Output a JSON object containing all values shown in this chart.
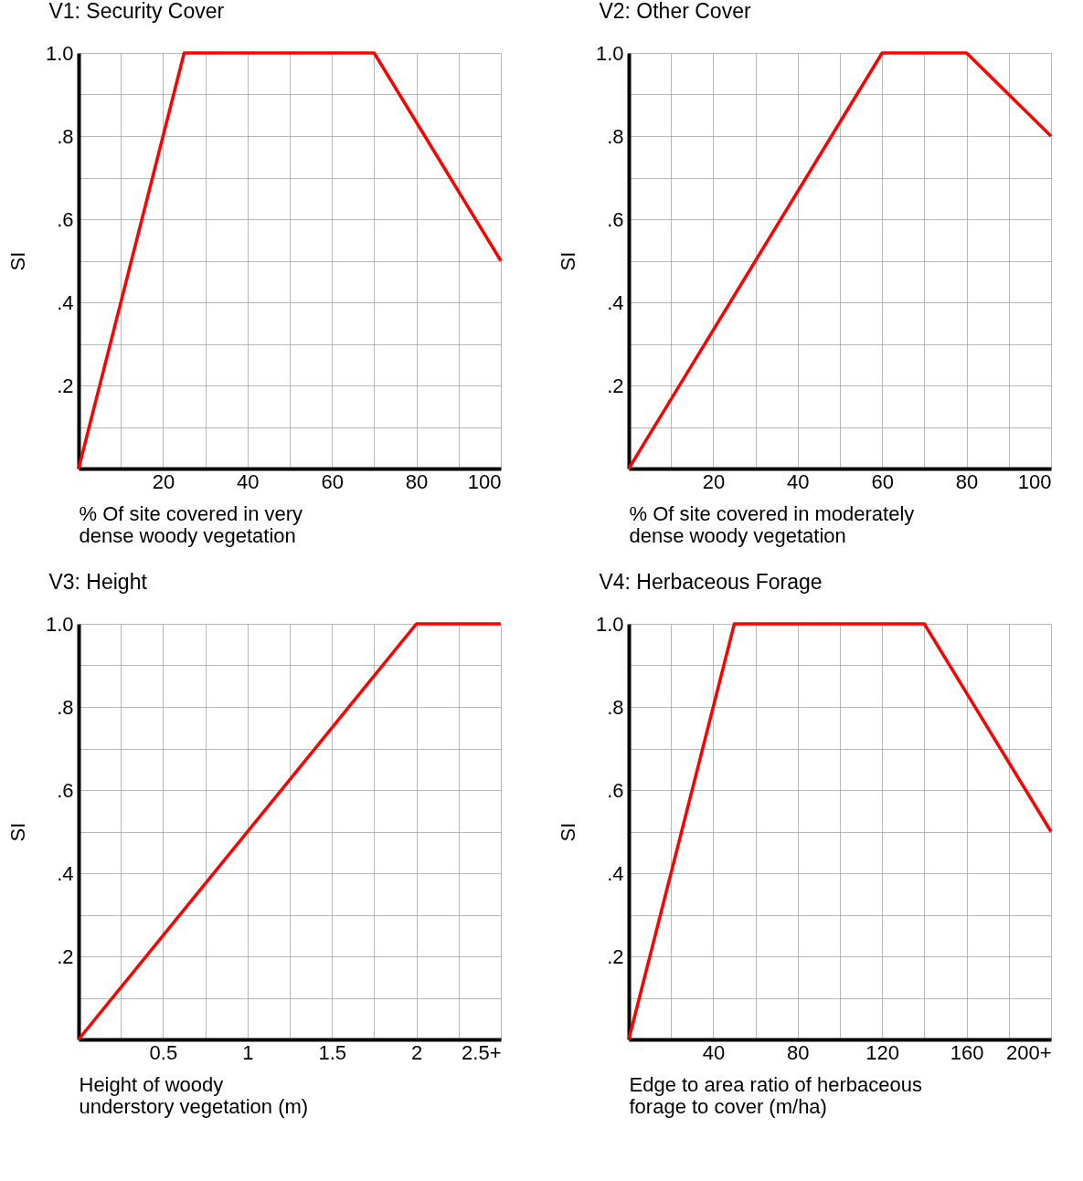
{
  "chart_data": [
    {
      "type": "line",
      "title": "V1: Security Cover",
      "xlabel": "% Of site covered in very dense woody vegetation",
      "ylabel": "SI",
      "x": [
        0,
        25,
        70,
        100
      ],
      "series": [
        {
          "color": "#ff0000",
          "values": [
            0,
            1,
            1,
            0.5
          ]
        }
      ],
      "xlim": [
        0,
        100
      ],
      "ylim": [
        0,
        1
      ],
      "xticks": [
        {
          "value": 10,
          "label": null
        },
        20,
        {
          "value": 30,
          "label": null
        },
        40,
        {
          "value": 50,
          "label": null
        },
        60,
        {
          "value": 70,
          "label": null
        },
        80,
        {
          "value": 90,
          "label": null
        },
        100
      ],
      "yticks": [
        {
          "value": 0.1,
          "label": null
        },
        {
          "value": 0.2,
          "label": ".2"
        },
        {
          "value": 0.3,
          "label": null
        },
        {
          "value": 0.4,
          "label": ".4"
        },
        {
          "value": 0.5,
          "label": null
        },
        {
          "value": 0.6,
          "label": ".6"
        },
        {
          "value": 0.7,
          "label": null
        },
        {
          "value": 0.8,
          "label": ".8"
        },
        {
          "value": 0.9,
          "label": null
        },
        {
          "value": 1,
          "label": "1.0"
        }
      ],
      "grid": true
    },
    {
      "type": "line",
      "title": "V2: Other Cover",
      "xlabel": "% Of site covered in moderately dense woody vegetation",
      "ylabel": "SI",
      "x": [
        0,
        60,
        80,
        100
      ],
      "series": [
        {
          "color": "#ff0000",
          "values": [
            0,
            1,
            1,
            0.8
          ]
        }
      ],
      "xlim": [
        0,
        100
      ],
      "ylim": [
        0,
        1
      ],
      "xticks": [
        {
          "value": 10,
          "label": null
        },
        20,
        {
          "value": 30,
          "label": null
        },
        40,
        {
          "value": 50,
          "label": null
        },
        60,
        {
          "value": 70,
          "label": null
        },
        80,
        {
          "value": 90,
          "label": null
        },
        100
      ],
      "yticks": [
        {
          "value": 0.1,
          "label": null
        },
        {
          "value": 0.2,
          "label": ".2"
        },
        {
          "value": 0.3,
          "label": null
        },
        {
          "value": 0.4,
          "label": ".4"
        },
        {
          "value": 0.5,
          "label": null
        },
        {
          "value": 0.6,
          "label": ".6"
        },
        {
          "value": 0.7,
          "label": null
        },
        {
          "value": 0.8,
          "label": ".8"
        },
        {
          "value": 0.9,
          "label": null
        },
        {
          "value": 1,
          "label": "1.0"
        }
      ],
      "grid": true
    },
    {
      "type": "line",
      "title": "V3: Height",
      "xlabel": "Height of woody understory vegetation (m)",
      "ylabel": "SI",
      "x": [
        0,
        2,
        2.5
      ],
      "series": [
        {
          "color": "#ff0000",
          "values": [
            0,
            1,
            1
          ]
        }
      ],
      "xlim": [
        0,
        2.5
      ],
      "ylim": [
        0,
        1
      ],
      "xticks": [
        {
          "value": 0.25,
          "label": null
        },
        0.5,
        {
          "value": 0.75,
          "label": null
        },
        1,
        {
          "value": 1.25,
          "label": null
        },
        1.5,
        {
          "value": 1.75,
          "label": null
        },
        2,
        {
          "value": 2.25,
          "label": null
        },
        {
          "value": 2.5,
          "label": "2.5+"
        }
      ],
      "yticks": [
        {
          "value": 0.1,
          "label": null
        },
        {
          "value": 0.2,
          "label": ".2"
        },
        {
          "value": 0.3,
          "label": null
        },
        {
          "value": 0.4,
          "label": ".4"
        },
        {
          "value": 0.5,
          "label": null
        },
        {
          "value": 0.6,
          "label": ".6"
        },
        {
          "value": 0.7,
          "label": null
        },
        {
          "value": 0.8,
          "label": ".8"
        },
        {
          "value": 0.9,
          "label": null
        },
        {
          "value": 1,
          "label": "1.0"
        }
      ],
      "grid": true
    },
    {
      "type": "line",
      "title": "V4: Herbaceous Forage",
      "xlabel": "Edge to area ratio of herbaceous forage to cover (m/ha)",
      "ylabel": "SI",
      "x": [
        0,
        50,
        140,
        200
      ],
      "series": [
        {
          "color": "#ff0000",
          "values": [
            0,
            1,
            1,
            0.5
          ]
        }
      ],
      "xlim": [
        0,
        200
      ],
      "ylim": [
        0,
        1
      ],
      "xticks": [
        {
          "value": 20,
          "label": null
        },
        40,
        {
          "value": 60,
          "label": null
        },
        80,
        {
          "value": 100,
          "label": null
        },
        120,
        {
          "value": 140,
          "label": null
        },
        160,
        {
          "value": 180,
          "label": null
        },
        {
          "value": 200,
          "label": "200+"
        }
      ],
      "yticks": [
        {
          "value": 0.1,
          "label": null
        },
        {
          "value": 0.2,
          "label": ".2"
        },
        {
          "value": 0.3,
          "label": null
        },
        {
          "value": 0.4,
          "label": ".4"
        },
        {
          "value": 0.5,
          "label": null
        },
        {
          "value": 0.6,
          "label": ".6"
        },
        {
          "value": 0.7,
          "label": null
        },
        {
          "value": 0.8,
          "label": ".8"
        },
        {
          "value": 0.9,
          "label": null
        },
        {
          "value": 1,
          "label": "1.0"
        }
      ],
      "grid": true
    }
  ]
}
